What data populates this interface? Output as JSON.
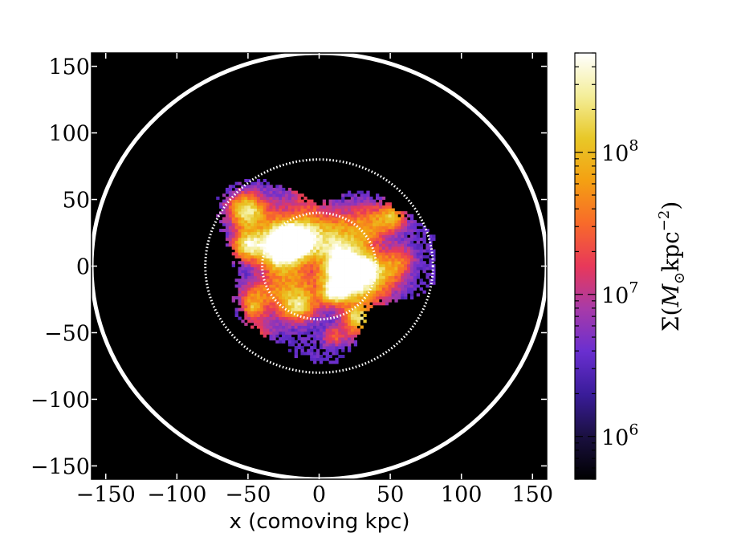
{
  "chart_data": {
    "type": "heatmap",
    "title": "",
    "xlabel": "x (comoving kpc)",
    "ylabel": "",
    "xlim": [
      -160,
      160
    ],
    "ylim": [
      -160,
      160
    ],
    "x_ticks": [
      -150,
      -100,
      -50,
      0,
      50,
      100,
      150
    ],
    "y_ticks": [
      -150,
      -100,
      -50,
      0,
      50,
      100,
      150
    ],
    "x_tick_labels": [
      "−150",
      "−100",
      "−50",
      "0",
      "50",
      "100",
      "150"
    ],
    "y_tick_labels": [
      "−150",
      "−100",
      "−50",
      "0",
      "50",
      "100",
      "150"
    ],
    "background_color": "#000000",
    "circles": [
      {
        "name": "outer",
        "radius": 160,
        "style": "solid",
        "color": "#ffffff"
      },
      {
        "name": "middle",
        "radius": 80,
        "style": "dotted",
        "color": "#ffffff"
      },
      {
        "name": "inner",
        "radius": 40,
        "style": "dotted",
        "color": "#ffffff"
      }
    ],
    "colorbar": {
      "label": "Σ(M⊙kpc−2)",
      "scale": "log",
      "range": [
        500000,
        500000000
      ],
      "ticks": [
        1000000,
        10000000,
        100000000
      ],
      "tick_labels": [
        {
          "base": "10",
          "exp": "6"
        },
        {
          "base": "10",
          "exp": "7"
        },
        {
          "base": "10",
          "exp": "8"
        }
      ],
      "colormap": [
        "#000000",
        "#1a1040",
        "#3a1c9a",
        "#6a2fd0",
        "#a83aa8",
        "#e8385a",
        "#f86a2a",
        "#f4a012",
        "#e8c828",
        "#f4ee9a",
        "#ffffff"
      ]
    }
  }
}
